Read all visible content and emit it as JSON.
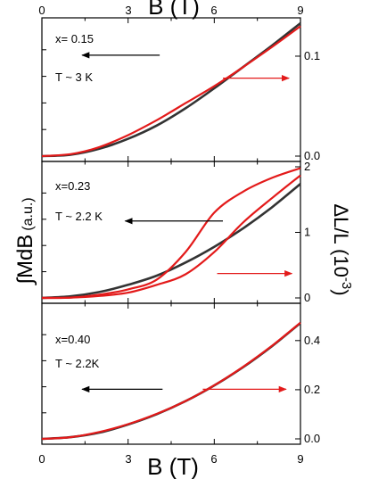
{
  "chart_data": {
    "type": "line",
    "xlabel": "B (T)",
    "ylabel_left": "∫MdB",
    "ylabel_left_unit": "(a.u.)",
    "ylabel_right": "ΔL/L (10",
    "ylabel_right_exp": "-3",
    "ylabel_right_close": ")",
    "xlim": [
      0,
      9
    ],
    "x_ticks": [
      0,
      3,
      6,
      9
    ],
    "x_tick_labels": [
      "0",
      "3",
      "6",
      "9"
    ],
    "grid": false,
    "colors": {
      "left_series": "#333333",
      "right_series": "#e31a1a",
      "arrow_left": "#000000",
      "arrow_right": "#e31a1a"
    },
    "panels": [
      {
        "annotations": [
          "x= 0.15",
          "T ~ 3 K"
        ],
        "right_ylim": [
          0.0,
          0.133
        ],
        "right_ticks": [
          0.0,
          0.1
        ],
        "right_tick_labels": [
          "0.0",
          "0.1"
        ],
        "series": [
          {
            "axis": "left",
            "x": [
              0,
              1,
              2,
              3,
              4,
              5,
              6,
              7,
              8,
              9
            ],
            "y": [
              0.0,
              0.01,
              0.055,
              0.13,
              0.23,
              0.36,
              0.51,
              0.67,
              0.83,
              1.0
            ]
          },
          {
            "axis": "right",
            "x": [
              0,
              1,
              2,
              3,
              4,
              5,
              6,
              7,
              8,
              9
            ],
            "y": [
              0.0,
              0.002,
              0.009,
              0.021,
              0.036,
              0.053,
              0.07,
              0.089,
              0.109,
              0.13
            ]
          }
        ],
        "arrows": [
          {
            "dir": "left",
            "x_from": 4.1,
            "x_to": 1.4,
            "frac": 0.74
          },
          {
            "dir": "right",
            "x_from": 6.3,
            "x_to": 8.6,
            "frac": 0.58
          }
        ]
      },
      {
        "annotations": [
          "x=0.23",
          "T ~ 2.2 K"
        ],
        "right_ylim": [
          0,
          2
        ],
        "right_ticks": [
          0,
          1,
          2
        ],
        "right_tick_labels": [
          "0",
          "1",
          "2"
        ],
        "series": [
          {
            "axis": "left",
            "x": [
              0,
              1,
              2,
              3,
              4,
              5,
              6,
              7,
              8,
              9
            ],
            "y": [
              0.0,
              0.012,
              0.045,
              0.1,
              0.17,
              0.27,
              0.39,
              0.53,
              0.69,
              0.87
            ]
          },
          {
            "axis": "right",
            "x": [
              0,
              1,
              2,
              3,
              4,
              5,
              6,
              7,
              8,
              9
            ],
            "y": [
              0.0,
              0.005,
              0.05,
              0.13,
              0.28,
              0.7,
              1.3,
              1.62,
              1.83,
              1.98
            ]
          },
          {
            "axis": "right",
            "x": [
              0,
              1,
              2,
              3,
              4,
              5,
              6,
              7,
              8,
              9
            ],
            "y": [
              0.0,
              0.004,
              0.03,
              0.08,
              0.2,
              0.36,
              0.7,
              1.15,
              1.52,
              1.87
            ]
          }
        ],
        "arrows": [
          {
            "dir": "left",
            "x_from": 6.3,
            "x_to": 2.9,
            "frac": 0.58
          },
          {
            "dir": "right",
            "x_from": 6.1,
            "x_to": 8.7,
            "frac": 0.21
          }
        ]
      },
      {
        "annotations": [
          "x=0.40",
          "T ~ 2.2K"
        ],
        "right_ylim": [
          0.0,
          0.53
        ],
        "right_ticks": [
          0.0,
          0.2,
          0.4
        ],
        "right_tick_labels": [
          "0.0",
          "0.2",
          "0.4"
        ],
        "series": [
          {
            "axis": "left",
            "x": [
              0,
              1,
              2,
              3,
              4,
              5,
              6,
              7,
              8,
              9
            ],
            "y": [
              0.0,
              0.013,
              0.048,
              0.11,
              0.19,
              0.29,
              0.41,
              0.55,
              0.71,
              0.89
            ]
          },
          {
            "axis": "right",
            "x": [
              0,
              1,
              2,
              3,
              4,
              5,
              6,
              7,
              8,
              9
            ],
            "y": [
              0.0,
              0.007,
              0.028,
              0.06,
              0.102,
              0.154,
              0.218,
              0.293,
              0.378,
              0.473
            ]
          }
        ],
        "arrows": [
          {
            "dir": "left",
            "x_from": 4.2,
            "x_to": 1.4,
            "frac": 0.39
          },
          {
            "dir": "right",
            "x_from": 5.6,
            "x_to": 8.5,
            "frac": 0.39
          }
        ]
      }
    ]
  }
}
